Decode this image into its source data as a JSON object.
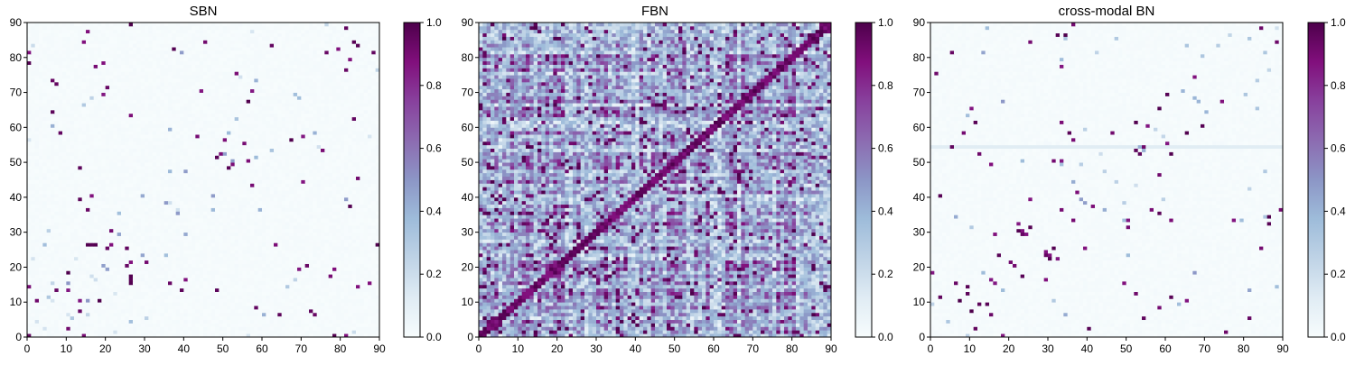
{
  "chart_data": [
    {
      "type": "heatmap",
      "title": "SBN",
      "xlim": [
        0,
        90
      ],
      "ylim": [
        0,
        90
      ],
      "xticks": [
        0,
        10,
        20,
        30,
        40,
        50,
        60,
        70,
        80,
        90
      ],
      "yticks": [
        0,
        10,
        20,
        30,
        40,
        50,
        60,
        70,
        80,
        90
      ],
      "colorbar": {
        "range": [
          0.0,
          1.0
        ],
        "ticks": [
          "0.0",
          "0.2",
          "0.4",
          "0.6",
          "0.8",
          "1.0"
        ]
      },
      "colormap": [
        "#f7fcfd",
        "#e0ecf4",
        "#bfd3e6",
        "#9ebcda",
        "#8c96c6",
        "#8c6bb1",
        "#88419d",
        "#810f7c",
        "#4d004b"
      ],
      "grid_size": 90,
      "density": "sparse",
      "background_value": 0.02
    },
    {
      "type": "heatmap",
      "title": "FBN",
      "xlim": [
        0,
        90
      ],
      "ylim": [
        0,
        90
      ],
      "xticks": [
        0,
        10,
        20,
        30,
        40,
        50,
        60,
        70,
        80,
        90
      ],
      "yticks": [
        0,
        10,
        20,
        30,
        40,
        50,
        60,
        70,
        80,
        90
      ],
      "colorbar": {
        "range": [
          0.0,
          1.0
        ],
        "ticks": [
          "0.0",
          "0.2",
          "0.4",
          "0.6",
          "0.8",
          "1.0"
        ]
      },
      "colormap": [
        "#f7fcfd",
        "#e0ecf4",
        "#bfd3e6",
        "#9ebcda",
        "#8c96c6",
        "#8c6bb1",
        "#88419d",
        "#810f7c",
        "#4d004b"
      ],
      "grid_size": 90,
      "density": "dense",
      "background_value": 0.2
    },
    {
      "type": "heatmap",
      "title": "cross-modal BN",
      "xlim": [
        0,
        90
      ],
      "ylim": [
        0,
        90
      ],
      "xticks": [
        0,
        10,
        20,
        30,
        40,
        50,
        60,
        70,
        80,
        90
      ],
      "yticks": [
        0,
        10,
        20,
        30,
        40,
        50,
        60,
        70,
        80,
        90
      ],
      "colorbar": {
        "range": [
          0.0,
          1.0
        ],
        "ticks": [
          "0.0",
          "0.2",
          "0.4",
          "0.6",
          "0.8",
          "1.0"
        ]
      },
      "colormap": [
        "#f7fcfd",
        "#e0ecf4",
        "#bfd3e6",
        "#9ebcda",
        "#8c96c6",
        "#8c6bb1",
        "#88419d",
        "#810f7c",
        "#4d004b"
      ],
      "grid_size": 90,
      "density": "sparse",
      "background_value": 0.02,
      "highlight_row": 54
    }
  ]
}
